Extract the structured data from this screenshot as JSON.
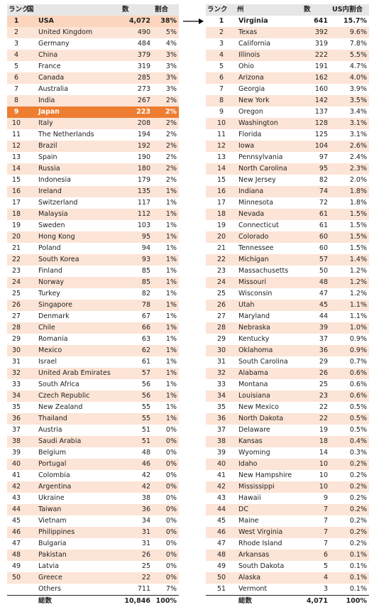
{
  "left_table": {
    "headers": [
      "ランク",
      "国",
      "数",
      "割合"
    ],
    "rows": [
      [
        "1",
        "USA",
        "4,072",
        "38%"
      ],
      [
        "2",
        "United Kingdom",
        "490",
        "5%"
      ],
      [
        "3",
        "Germany",
        "484",
        "4%"
      ],
      [
        "4",
        "China",
        "379",
        "3%"
      ],
      [
        "5",
        "France",
        "319",
        "3%"
      ],
      [
        "6",
        "Canada",
        "285",
        "3%"
      ],
      [
        "7",
        "Australia",
        "273",
        "3%"
      ],
      [
        "8",
        "India",
        "267",
        "2%"
      ],
      [
        "9",
        "Japan",
        "223",
        "2%"
      ],
      [
        "10",
        "Italy",
        "208",
        "2%"
      ],
      [
        "11",
        "The Netherlands",
        "194",
        "2%"
      ],
      [
        "12",
        "Brazil",
        "192",
        "2%"
      ],
      [
        "13",
        "Spain",
        "190",
        "2%"
      ],
      [
        "14",
        "Russia",
        "180",
        "2%"
      ],
      [
        "15",
        "Indonesia",
        "179",
        "2%"
      ],
      [
        "16",
        "Ireland",
        "135",
        "1%"
      ],
      [
        "17",
        "Switzerland",
        "117",
        "1%"
      ],
      [
        "18",
        "Malaysia",
        "112",
        "1%"
      ],
      [
        "19",
        "Sweden",
        "103",
        "1%"
      ],
      [
        "20",
        "Hong Kong",
        "95",
        "1%"
      ],
      [
        "21",
        "Poland",
        "94",
        "1%"
      ],
      [
        "22",
        "South Korea",
        "93",
        "1%"
      ],
      [
        "23",
        "Finland",
        "85",
        "1%"
      ],
      [
        "24",
        "Norway",
        "85",
        "1%"
      ],
      [
        "25",
        "Turkey",
        "82",
        "1%"
      ],
      [
        "26",
        "Singapore",
        "78",
        "1%"
      ],
      [
        "27",
        "Denmark",
        "67",
        "1%"
      ],
      [
        "28",
        "Chile",
        "66",
        "1%"
      ],
      [
        "29",
        "Romania",
        "63",
        "1%"
      ],
      [
        "30",
        "Mexico",
        "62",
        "1%"
      ],
      [
        "31",
        "Israel",
        "61",
        "1%"
      ],
      [
        "32",
        "United Arab Emirates",
        "57",
        "1%"
      ],
      [
        "33",
        "South Africa",
        "56",
        "1%"
      ],
      [
        "34",
        "Czech Republic",
        "56",
        "1%"
      ],
      [
        "35",
        "New Zealand",
        "55",
        "1%"
      ],
      [
        "36",
        "Thailand",
        "55",
        "1%"
      ],
      [
        "37",
        "Austria",
        "51",
        "0%"
      ],
      [
        "38",
        "Saudi Arabia",
        "51",
        "0%"
      ],
      [
        "39",
        "Belgium",
        "48",
        "0%"
      ],
      [
        "40",
        "Portugal",
        "46",
        "0%"
      ],
      [
        "41",
        "Colombia",
        "42",
        "0%"
      ],
      [
        "42",
        "Argentina",
        "42",
        "0%"
      ],
      [
        "43",
        "Ukraine",
        "38",
        "0%"
      ],
      [
        "44",
        "Taiwan",
        "36",
        "0%"
      ],
      [
        "45",
        "Vietnam",
        "34",
        "0%"
      ],
      [
        "46",
        "Philippines",
        "31",
        "0%"
      ],
      [
        "47",
        "Bulgaria",
        "31",
        "0%"
      ],
      [
        "48",
        "Pakistan",
        "26",
        "0%"
      ],
      [
        "49",
        "Latvia",
        "25",
        "0%"
      ],
      [
        "50",
        "Greece",
        "22",
        "0%"
      ]
    ],
    "others": [
      "Others",
      "711",
      "7%"
    ],
    "total": [
      "総数",
      "10,846",
      "100%"
    ]
  },
  "right_table": {
    "headers": [
      "ランク",
      "州",
      "数",
      "US内割合"
    ],
    "rows": [
      [
        "1",
        "Virginia",
        "641",
        "15.7%"
      ],
      [
        "2",
        "Texas",
        "392",
        "9.6%"
      ],
      [
        "3",
        "California",
        "319",
        "7.8%"
      ],
      [
        "4",
        "Illinois",
        "222",
        "5.5%"
      ],
      [
        "5",
        "Ohio",
        "191",
        "4.7%"
      ],
      [
        "6",
        "Arizona",
        "162",
        "4.0%"
      ],
      [
        "7",
        "Georgia",
        "160",
        "3.9%"
      ],
      [
        "8",
        "New York",
        "142",
        "3.5%"
      ],
      [
        "9",
        "Oregon",
        "137",
        "3.4%"
      ],
      [
        "10",
        "Washington",
        "128",
        "3.1%"
      ],
      [
        "11",
        "Florida",
        "125",
        "3.1%"
      ],
      [
        "12",
        "Iowa",
        "104",
        "2.6%"
      ],
      [
        "13",
        "Pennsylvania",
        "97",
        "2.4%"
      ],
      [
        "14",
        "North Carolina",
        "95",
        "2.3%"
      ],
      [
        "15",
        "New Jersey",
        "82",
        "2.0%"
      ],
      [
        "16",
        "Indiana",
        "74",
        "1.8%"
      ],
      [
        "17",
        "Minnesota",
        "72",
        "1.8%"
      ],
      [
        "18",
        "Nevada",
        "61",
        "1.5%"
      ],
      [
        "19",
        "Connecticut",
        "61",
        "1.5%"
      ],
      [
        "20",
        "Colorado",
        "60",
        "1.5%"
      ],
      [
        "21",
        "Tennessee",
        "60",
        "1.5%"
      ],
      [
        "22",
        "Michigan",
        "57",
        "1.4%"
      ],
      [
        "23",
        "Massachusetts",
        "50",
        "1.2%"
      ],
      [
        "24",
        "Missouri",
        "48",
        "1.2%"
      ],
      [
        "25",
        "Wisconsin",
        "47",
        "1.2%"
      ],
      [
        "26",
        "Utah",
        "45",
        "1.1%"
      ],
      [
        "27",
        "Maryland",
        "44",
        "1.1%"
      ],
      [
        "28",
        "Nebraska",
        "39",
        "1.0%"
      ],
      [
        "29",
        "Kentucky",
        "37",
        "0.9%"
      ],
      [
        "30",
        "Oklahoma",
        "36",
        "0.9%"
      ],
      [
        "31",
        "South Carolina",
        "29",
        "0.7%"
      ],
      [
        "32",
        "Alabama",
        "26",
        "0.6%"
      ],
      [
        "33",
        "Montana",
        "25",
        "0.6%"
      ],
      [
        "34",
        "Louisiana",
        "23",
        "0.6%"
      ],
      [
        "35",
        "New Mexico",
        "22",
        "0.5%"
      ],
      [
        "36",
        "North Dakota",
        "22",
        "0.5%"
      ],
      [
        "37",
        "Delaware",
        "19",
        "0.5%"
      ],
      [
        "38",
        "Kansas",
        "18",
        "0.4%"
      ],
      [
        "39",
        "Wyoming",
        "14",
        "0.3%"
      ],
      [
        "40",
        "Idaho",
        "10",
        "0.2%"
      ],
      [
        "41",
        "New Hampshire",
        "10",
        "0.2%"
      ],
      [
        "42",
        "Mississippi",
        "10",
        "0.2%"
      ],
      [
        "43",
        "Hawaii",
        "9",
        "0.2%"
      ],
      [
        "44",
        "DC",
        "7",
        "0.2%"
      ],
      [
        "45",
        "Maine",
        "7",
        "0.2%"
      ],
      [
        "46",
        "West Virginia",
        "7",
        "0.2%"
      ],
      [
        "47",
        "Rhode Island",
        "7",
        "0.2%"
      ],
      [
        "48",
        "Arkansas",
        "6",
        "0.1%"
      ],
      [
        "49",
        "South Dakota",
        "5",
        "0.1%"
      ],
      [
        "50",
        "Alaska",
        "4",
        "0.1%"
      ],
      [
        "51",
        "Vermont",
        "3",
        "0.1%"
      ]
    ],
    "total": [
      "総数",
      "4,071",
      "100%"
    ]
  }
}
